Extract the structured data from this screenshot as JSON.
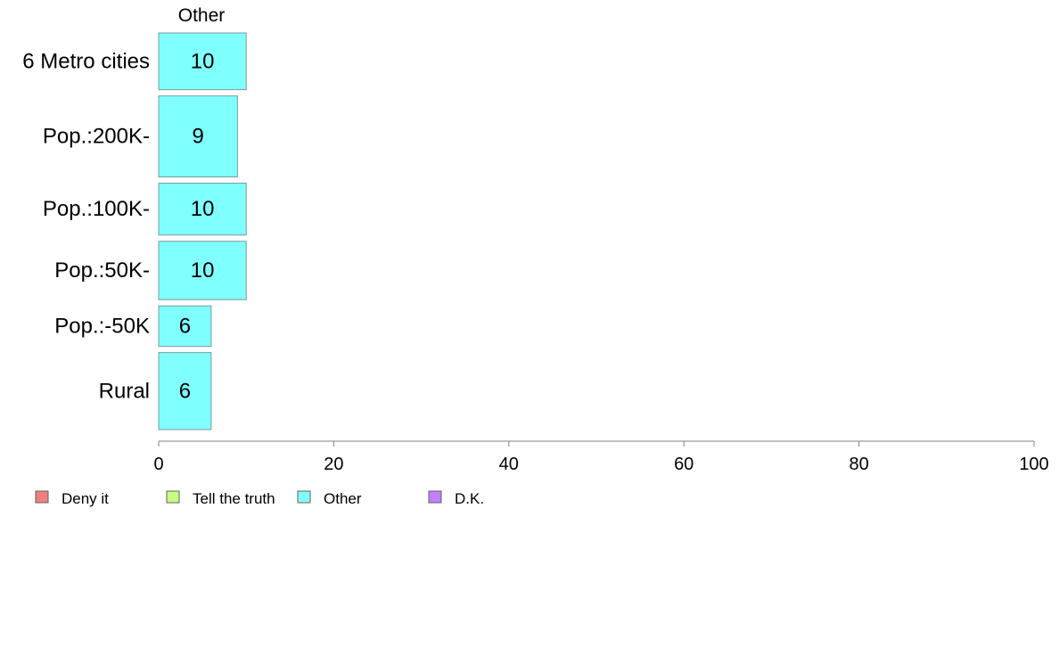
{
  "chart_data": {
    "type": "bar",
    "orientation": "horizontal",
    "panel_label": "Other",
    "categories": [
      "6 Metro cities",
      "Pop.:200K-",
      "Pop.:100K-",
      "Pop.:50K-",
      "Pop.:-50K",
      "Rural"
    ],
    "series": [
      {
        "name": "Other",
        "values": [
          10,
          9,
          10,
          10,
          6,
          6
        ],
        "color": "#80ffff"
      }
    ],
    "relative_widths": [
      0.7,
      1.0,
      0.64,
      0.72,
      0.5,
      0.95
    ],
    "xlim": [
      0,
      100
    ],
    "xticks": [
      0,
      20,
      40,
      60,
      80,
      100
    ],
    "grid": false,
    "legend_position": "bottom",
    "legend": [
      {
        "label": "Deny it",
        "color": "#f08080"
      },
      {
        "label": "Tell the truth",
        "color": "#c8ff80"
      },
      {
        "label": "Other",
        "color": "#80ffff"
      },
      {
        "label": "D.K.",
        "color": "#c080ff"
      }
    ],
    "title": "",
    "xlabel": "",
    "ylabel": ""
  }
}
